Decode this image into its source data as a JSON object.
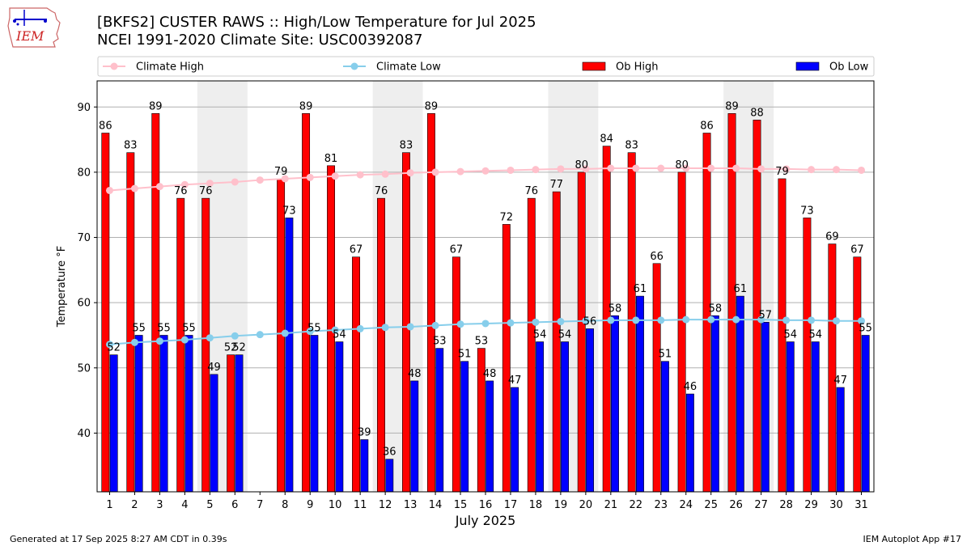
{
  "header": {
    "title_line1": "[BKFS2] CUSTER RAWS :: High/Low Temperature for Jul 2025",
    "title_line2": "NCEI 1991-2020 Climate Site: USC00392087",
    "logo_text": "IEM"
  },
  "footer": {
    "generated": "Generated at 17 Sep 2025 8:27 AM CDT in 0.39s",
    "app": "IEM Autoplot App #17"
  },
  "colors": {
    "ob_high": "#ff0000",
    "ob_low": "#0000ff",
    "climate_high": "#ffc0cb",
    "climate_low": "#87ceeb",
    "weekend_band": "#eeeeee",
    "grid": "#b0b0b0"
  },
  "chart_data": {
    "type": "bar",
    "xlabel": "July 2025",
    "ylabel": "Temperature °F",
    "ylim": [
      31,
      94
    ],
    "yticks": [
      40,
      50,
      60,
      70,
      80,
      90
    ],
    "grid": "horizontal",
    "legend_placement": "top",
    "legend": [
      "Climate High",
      "Climate Low",
      "Ob High",
      "Ob Low"
    ],
    "categories": [
      "1",
      "2",
      "3",
      "4",
      "5",
      "6",
      "7",
      "8",
      "9",
      "10",
      "11",
      "12",
      "13",
      "14",
      "15",
      "16",
      "17",
      "18",
      "19",
      "20",
      "21",
      "22",
      "23",
      "24",
      "25",
      "26",
      "27",
      "28",
      "29",
      "30",
      "31"
    ],
    "shaded_days": [
      [
        5,
        6
      ],
      [
        12,
        13
      ],
      [
        19,
        20
      ],
      [
        26,
        27
      ]
    ],
    "series": [
      {
        "name": "Ob High",
        "values": [
          86,
          83,
          89,
          76,
          76,
          52,
          null,
          79,
          89,
          81,
          67,
          76,
          83,
          89,
          67,
          53,
          72,
          76,
          77,
          80,
          84,
          83,
          66,
          80,
          86,
          89,
          88,
          79,
          73,
          69,
          67
        ]
      },
      {
        "name": "Ob Low",
        "values": [
          52,
          55,
          55,
          55,
          49,
          52,
          null,
          73,
          55,
          54,
          39,
          36,
          48,
          53,
          51,
          48,
          47,
          54,
          54,
          56,
          58,
          61,
          51,
          46,
          58,
          61,
          57,
          54,
          54,
          47,
          55
        ]
      },
      {
        "name": "Climate High",
        "values": [
          77.2,
          77.5,
          77.8,
          78.1,
          78.3,
          78.5,
          78.8,
          79.0,
          79.2,
          79.4,
          79.6,
          79.7,
          79.9,
          80.0,
          80.1,
          80.2,
          80.3,
          80.4,
          80.5,
          80.5,
          80.6,
          80.6,
          80.6,
          80.6,
          80.6,
          80.6,
          80.5,
          80.5,
          80.4,
          80.4,
          80.3
        ]
      },
      {
        "name": "Climate Low",
        "values": [
          53.6,
          53.9,
          54.1,
          54.3,
          54.6,
          54.9,
          55.1,
          55.3,
          55.6,
          55.8,
          56.0,
          56.2,
          56.3,
          56.5,
          56.7,
          56.8,
          56.9,
          57.0,
          57.1,
          57.2,
          57.3,
          57.3,
          57.3,
          57.4,
          57.4,
          57.4,
          57.4,
          57.3,
          57.3,
          57.2,
          57.2
        ]
      }
    ]
  }
}
